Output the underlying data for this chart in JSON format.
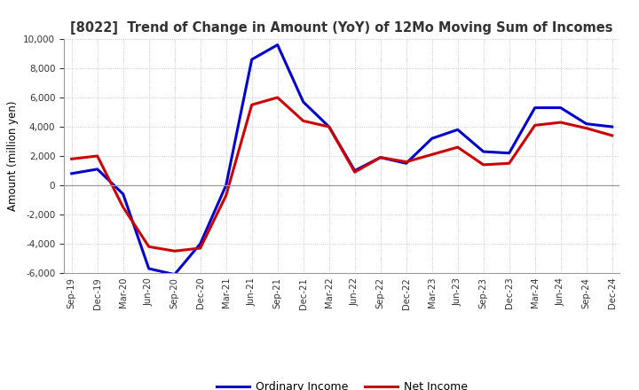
{
  "title": "[8022]  Trend of Change in Amount (YoY) of 12Mo Moving Sum of Incomes",
  "ylabel": "Amount (million yen)",
  "x_labels": [
    "Sep-19",
    "Dec-19",
    "Mar-20",
    "Jun-20",
    "Sep-20",
    "Dec-20",
    "Mar-21",
    "Jun-21",
    "Sep-21",
    "Dec-21",
    "Mar-22",
    "Jun-22",
    "Sep-22",
    "Dec-22",
    "Mar-23",
    "Jun-23",
    "Sep-23",
    "Dec-23",
    "Mar-24",
    "Jun-24",
    "Sep-24",
    "Dec-24"
  ],
  "ordinary_income": [
    800,
    1100,
    -600,
    -5700,
    -6100,
    -4000,
    0,
    8600,
    9600,
    5700,
    4000,
    1000,
    1900,
    1500,
    3200,
    3800,
    2300,
    2200,
    5300,
    5300,
    4200,
    4000
  ],
  "net_income": [
    1800,
    2000,
    -1500,
    -4200,
    -4500,
    -4300,
    -700,
    5500,
    6000,
    4400,
    4000,
    900,
    1900,
    1600,
    2100,
    2600,
    1400,
    1500,
    4100,
    4300,
    3900,
    3400
  ],
  "ordinary_color": "#0000cc",
  "net_color": "#cc0000",
  "ylim": [
    -6000,
    10000
  ],
  "yticks": [
    -6000,
    -4000,
    -2000,
    0,
    2000,
    4000,
    6000,
    8000,
    10000
  ],
  "background_color": "#ffffff",
  "grid_color": "#bbbbbb",
  "legend_ordinary": "Ordinary Income",
  "legend_net": "Net Income",
  "line_width": 2.2,
  "title_color": "#333333"
}
